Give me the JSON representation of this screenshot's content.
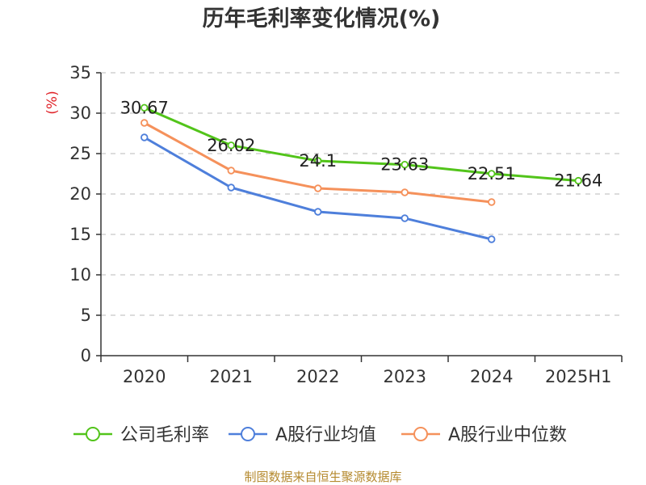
{
  "chart_data": {
    "type": "line",
    "title": "历年毛利率变化情况(%)",
    "ylabel": "(%)",
    "xlabel": "",
    "categories": [
      "2020",
      "2021",
      "2022",
      "2023",
      "2024",
      "2025H1"
    ],
    "ylim": [
      0,
      35
    ],
    "yticks": [
      0,
      5,
      10,
      15,
      20,
      25,
      30,
      35
    ],
    "grid": true,
    "legend_position": "bottom",
    "series": [
      {
        "name": "公司毛利率",
        "color": "#52c41a",
        "values": [
          30.67,
          26.02,
          24.1,
          23.63,
          22.51,
          21.64
        ],
        "labels": [
          "30.67",
          "26.02",
          "24.1",
          "23.63",
          "22.51",
          "21.64"
        ],
        "show_labels": true
      },
      {
        "name": "A股行业均值",
        "color": "#4e7fdb",
        "values": [
          27.0,
          20.8,
          17.8,
          17.0,
          14.4,
          null
        ],
        "show_labels": false
      },
      {
        "name": "A股行业中位数",
        "color": "#f5915b",
        "values": [
          28.8,
          22.9,
          20.7,
          20.2,
          19.0,
          null
        ],
        "show_labels": false
      }
    ],
    "source": "制图数据来自恒生聚源数据库"
  }
}
